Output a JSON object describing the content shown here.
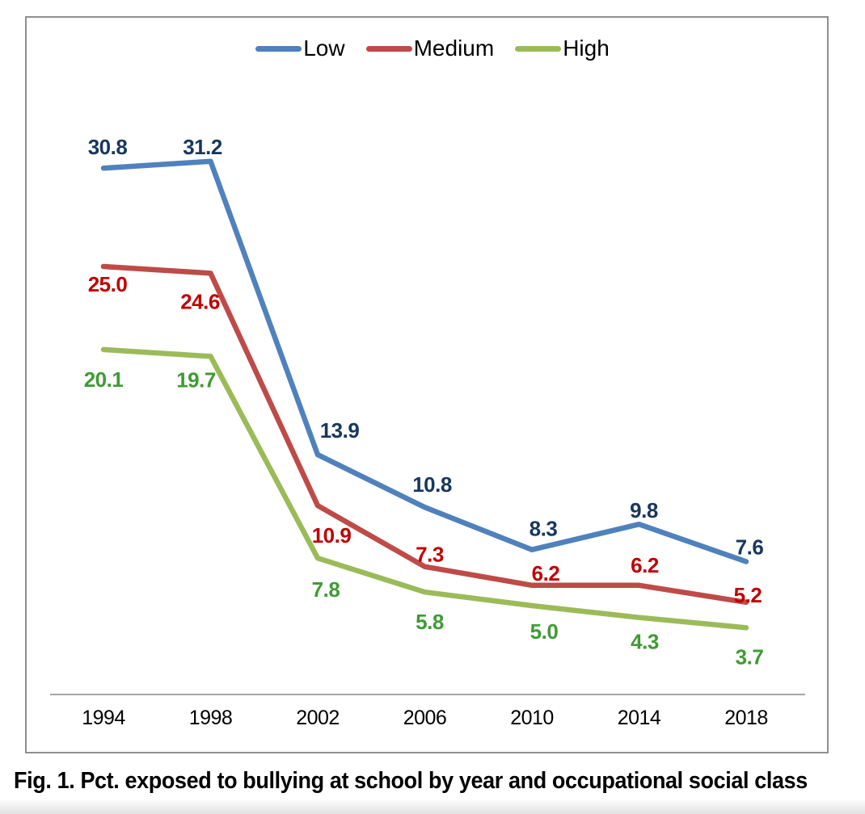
{
  "figure": {
    "caption": "Fig. 1. Pct. exposed to bullying at school by year and occupational social class"
  },
  "chart_data": {
    "type": "line",
    "title": "",
    "xlabel": "",
    "ylabel": "",
    "categories": [
      "1994",
      "1998",
      "2002",
      "2006",
      "2010",
      "2014",
      "2018"
    ],
    "series": [
      {
        "name": "Low",
        "color": "#4F81BD",
        "label_color": "#17375E",
        "values": [
          30.8,
          31.2,
          13.9,
          10.8,
          8.3,
          9.8,
          7.6
        ],
        "label_offsets": [
          [
            5,
            -26
          ],
          [
            -10,
            -18
          ],
          [
            27,
            -30
          ],
          [
            9,
            -28
          ],
          [
            14,
            -26
          ],
          [
            6,
            -17
          ],
          [
            4,
            -18
          ]
        ]
      },
      {
        "name": "Medium",
        "color": "#BE4B48",
        "label_color": "#C00000",
        "values": [
          25.0,
          24.6,
          10.9,
          7.3,
          6.2,
          6.2,
          5.2
        ],
        "label_offsets": [
          [
            5,
            22
          ],
          [
            -13,
            35
          ],
          [
            17,
            37
          ],
          [
            6,
            -15
          ],
          [
            17,
            -15
          ],
          [
            7,
            -25
          ],
          [
            2,
            -9
          ]
        ]
      },
      {
        "name": "High",
        "color": "#9BBB59",
        "label_color": "#3F9B35",
        "values": [
          20.1,
          19.7,
          7.8,
          5.8,
          5.0,
          4.3,
          3.7
        ],
        "label_offsets": [
          [
            0,
            37
          ],
          [
            -18,
            29
          ],
          [
            10,
            39
          ],
          [
            6,
            37
          ],
          [
            15,
            32
          ],
          [
            7,
            30
          ],
          [
            4,
            36
          ]
        ]
      }
    ],
    "ylim": [
      0,
      35
    ],
    "grid": false,
    "data_labels": true,
    "legend_position": "top-center",
    "axis_color": "#A6A6A6"
  }
}
